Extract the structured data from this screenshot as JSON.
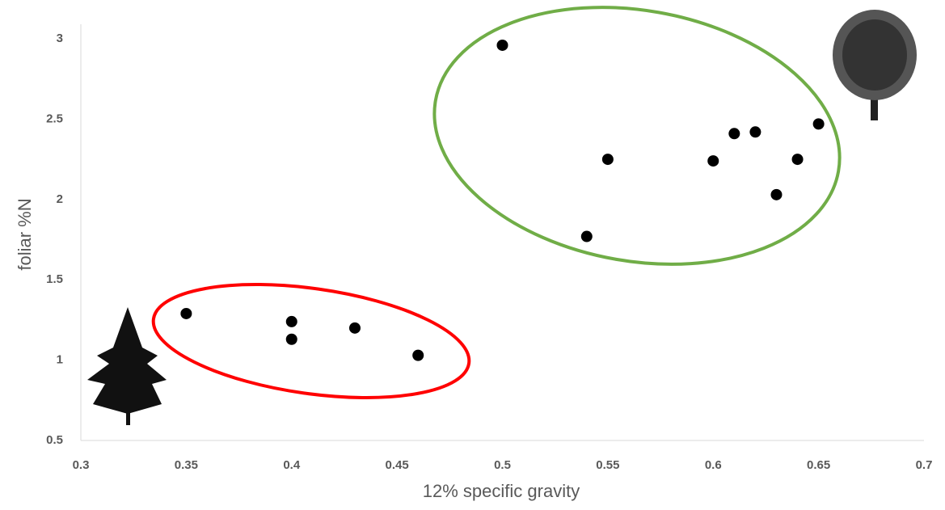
{
  "chart_data": {
    "type": "scatter",
    "x_label": "12% specific gravity",
    "y_label": "foliar %N",
    "x": [
      0.35,
      0.4,
      0.4,
      0.43,
      0.46,
      0.5,
      0.54,
      0.55,
      0.6,
      0.61,
      0.62,
      0.63,
      0.64,
      0.65
    ],
    "values": [
      1.29,
      1.24,
      1.13,
      1.2,
      1.03,
      2.96,
      1.77,
      2.25,
      2.24,
      2.41,
      2.42,
      2.03,
      2.25,
      2.47
    ],
    "color": "#000000",
    "xlim": [
      0.3,
      0.7
    ],
    "xticks": [
      0.3,
      0.35,
      0.4,
      0.45,
      0.5,
      0.55,
      0.6,
      0.65,
      0.7
    ],
    "ylim": [
      0.5,
      3
    ],
    "yticks": [
      0.5,
      1,
      1.5,
      2,
      2.5,
      3
    ]
  }
}
